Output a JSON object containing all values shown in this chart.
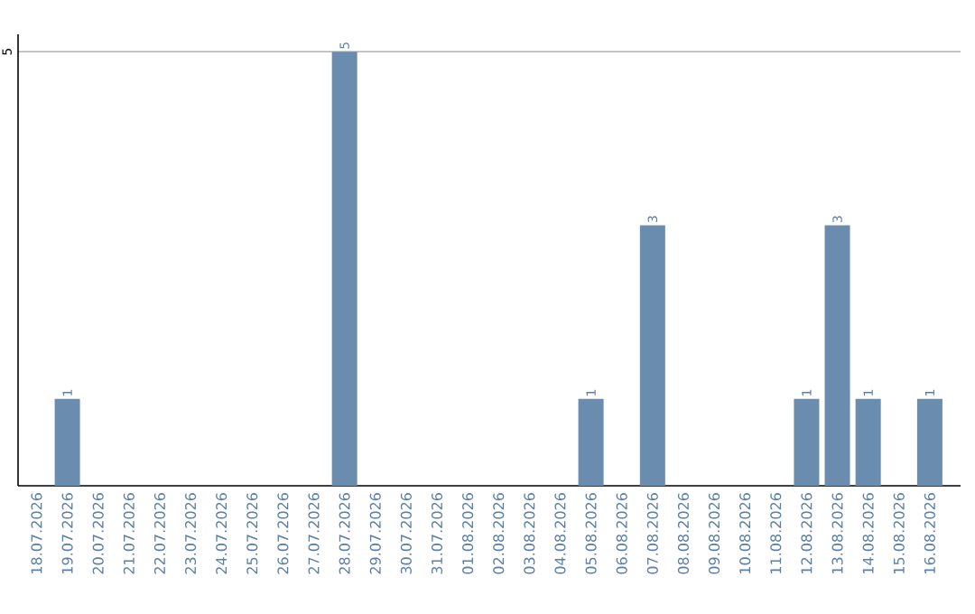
{
  "chart_data": {
    "type": "bar",
    "categories": [
      "18.07.2026",
      "19.07.2026",
      "20.07.2026",
      "21.07.2026",
      "22.07.2026",
      "23.07.2026",
      "24.07.2026",
      "25.07.2026",
      "26.07.2026",
      "27.07.2026",
      "28.07.2026",
      "29.07.2026",
      "30.07.2026",
      "31.07.2026",
      "01.08.2026",
      "02.08.2026",
      "03.08.2026",
      "04.08.2026",
      "05.08.2026",
      "06.08.2026",
      "07.08.2026",
      "08.08.2026",
      "09.08.2026",
      "10.08.2026",
      "11.08.2026",
      "12.08.2026",
      "13.08.2026",
      "14.08.2026",
      "15.08.2026",
      "16.08.2026"
    ],
    "values": [
      0,
      1,
      0,
      0,
      0,
      0,
      0,
      0,
      0,
      0,
      5,
      0,
      0,
      0,
      0,
      0,
      0,
      0,
      1,
      0,
      3,
      0,
      0,
      0,
      0,
      1,
      3,
      1,
      0,
      1
    ],
    "value_labels": [
      null,
      "1",
      null,
      null,
      null,
      null,
      null,
      null,
      null,
      null,
      "5",
      null,
      null,
      null,
      null,
      null,
      null,
      null,
      "1",
      null,
      "3",
      null,
      null,
      null,
      null,
      "1",
      "3",
      "1",
      null,
      "1"
    ],
    "color": "#6a8caf",
    "ylim": [
      0,
      5.2
    ],
    "yticks": [
      5
    ],
    "grid": "y"
  }
}
